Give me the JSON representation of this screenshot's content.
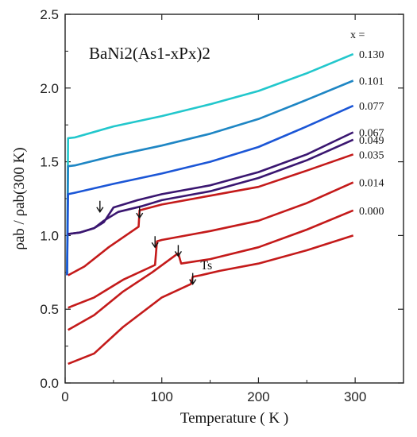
{
  "chart_data": {
    "type": "line",
    "title": "BaNi2(As1-xPx)2",
    "xlabel": "Temperature ( K )",
    "ylabel": "ρab / ρab(300 K)",
    "xlim": [
      0,
      350
    ],
    "ylim": [
      0,
      2.5
    ],
    "x_ticks": [
      "0",
      "100",
      "200",
      "300"
    ],
    "y_ticks": [
      "0.0",
      "0.5",
      "1.0",
      "1.5",
      "2.0",
      "2.5"
    ],
    "legend_header": "x =",
    "legend_placement": "right",
    "grid": false,
    "annotations": [
      {
        "text": "Ts",
        "x": 140,
        "y": 0.77
      }
    ],
    "arrows": [
      {
        "x": 36,
        "y": 1.16
      },
      {
        "x": 77,
        "y": 1.12
      },
      {
        "x": 93,
        "y": 0.92
      },
      {
        "x": 117,
        "y": 0.86
      },
      {
        "x": 132,
        "y": 0.67
      }
    ],
    "series": [
      {
        "name": "0.130",
        "color": "#22c7cc",
        "points": [
          [
            2,
            0.73
          ],
          [
            3,
            1.66
          ],
          [
            10,
            1.665
          ],
          [
            50,
            1.74
          ],
          [
            100,
            1.81
          ],
          [
            150,
            1.89
          ],
          [
            200,
            1.98
          ],
          [
            250,
            2.1
          ],
          [
            298,
            2.23
          ]
        ]
      },
      {
        "name": "0.101",
        "color": "#1e86c4",
        "points": [
          [
            2,
            0.73
          ],
          [
            3,
            1.47
          ],
          [
            10,
            1.475
          ],
          [
            50,
            1.54
          ],
          [
            100,
            1.61
          ],
          [
            150,
            1.69
          ],
          [
            200,
            1.79
          ],
          [
            250,
            1.92
          ],
          [
            298,
            2.05
          ]
        ]
      },
      {
        "name": "0.077",
        "color": "#1b56d6",
        "points": [
          [
            2,
            0.73
          ],
          [
            3,
            1.28
          ],
          [
            10,
            1.29
          ],
          [
            50,
            1.35
          ],
          [
            100,
            1.42
          ],
          [
            150,
            1.5
          ],
          [
            200,
            1.6
          ],
          [
            250,
            1.74
          ],
          [
            298,
            1.88
          ]
        ]
      },
      {
        "name": "0.067",
        "color": "#3a1670",
        "points": [
          [
            3,
            1.01
          ],
          [
            15,
            1.02
          ],
          [
            30,
            1.05
          ],
          [
            40,
            1.09
          ],
          [
            50,
            1.19
          ],
          [
            75,
            1.24
          ],
          [
            100,
            1.28
          ],
          [
            150,
            1.34
          ],
          [
            200,
            1.43
          ],
          [
            250,
            1.55
          ],
          [
            298,
            1.7
          ]
        ]
      },
      {
        "name": "0.049",
        "color": "#3a1670",
        "points": [
          [
            3,
            1.01
          ],
          [
            15,
            1.02
          ],
          [
            30,
            1.05
          ],
          [
            40,
            1.1
          ],
          [
            55,
            1.16
          ],
          [
            80,
            1.2
          ],
          [
            100,
            1.24
          ],
          [
            150,
            1.3
          ],
          [
            200,
            1.39
          ],
          [
            250,
            1.51
          ],
          [
            298,
            1.65
          ]
        ]
      },
      {
        "name": "0.035",
        "color": "#c41a1a",
        "points": [
          [
            3,
            0.73
          ],
          [
            20,
            0.79
          ],
          [
            45,
            0.92
          ],
          [
            76,
            1.06
          ],
          [
            77,
            1.17
          ],
          [
            100,
            1.21
          ],
          [
            150,
            1.27
          ],
          [
            200,
            1.33
          ],
          [
            250,
            1.44
          ],
          [
            298,
            1.55
          ]
        ]
      },
      {
        "name": "0.014",
        "color": "#c41a1a",
        "points": [
          [
            3,
            0.51
          ],
          [
            30,
            0.58
          ],
          [
            60,
            0.7
          ],
          [
            93,
            0.8
          ],
          [
            95,
            0.96
          ],
          [
            100,
            0.97
          ],
          [
            150,
            1.03
          ],
          [
            200,
            1.1
          ],
          [
            250,
            1.22
          ],
          [
            298,
            1.36
          ]
        ]
      },
      {
        "name": "0.000",
        "color": "#c41a1a",
        "points": [
          [
            3,
            0.36
          ],
          [
            30,
            0.46
          ],
          [
            60,
            0.62
          ],
          [
            90,
            0.75
          ],
          [
            117,
            0.88
          ],
          [
            120,
            0.81
          ],
          [
            150,
            0.84
          ],
          [
            200,
            0.92
          ],
          [
            250,
            1.04
          ],
          [
            298,
            1.17
          ]
        ]
      },
      {
        "name": "",
        "color": "#c41a1a",
        "points": [
          [
            3,
            0.13
          ],
          [
            30,
            0.2
          ],
          [
            60,
            0.38
          ],
          [
            100,
            0.58
          ],
          [
            130,
            0.67
          ],
          [
            132,
            0.72
          ],
          [
            140,
            0.73
          ],
          [
            160,
            0.76
          ],
          [
            200,
            0.81
          ],
          [
            250,
            0.9
          ],
          [
            298,
            1.0
          ]
        ]
      }
    ]
  }
}
